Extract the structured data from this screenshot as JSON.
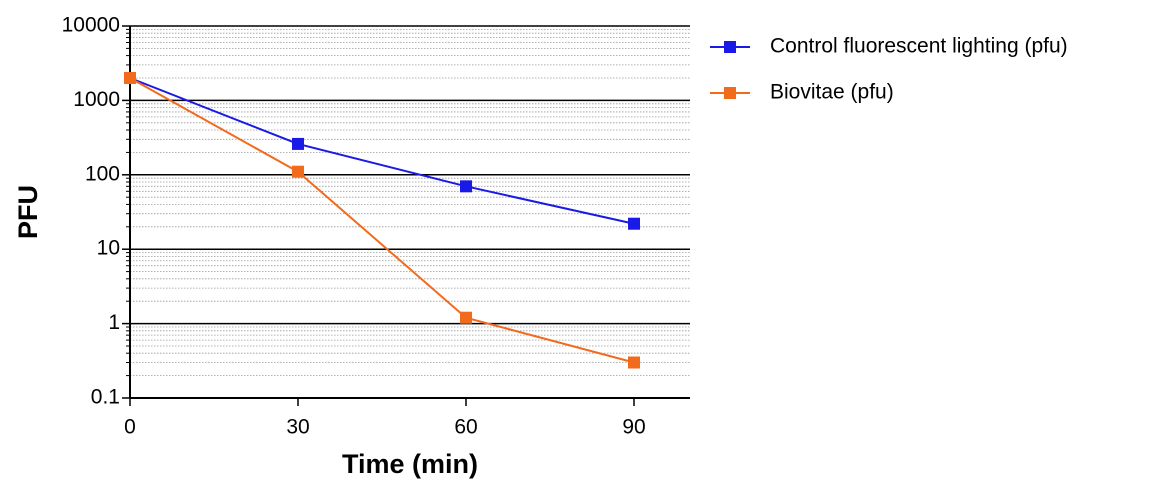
{
  "chart_data": {
    "type": "line",
    "x_label": "Time (min)",
    "y_label": "PFU",
    "x": [
      0,
      30,
      60,
      90
    ],
    "series": [
      {
        "name": "Control fluorescent lighting (pfu)",
        "color": "#1a1ae6",
        "values": [
          2000,
          260,
          70,
          22
        ]
      },
      {
        "name": "Biovitae (pfu)",
        "color": "#f26b1d",
        "values": [
          2000,
          110,
          1.2,
          0.3
        ]
      }
    ],
    "xlim": [
      0,
      100
    ],
    "xticks": [
      0,
      30,
      60,
      90
    ],
    "ylim": [
      0.1,
      10000
    ],
    "yticks": [
      0.1,
      1,
      10,
      100,
      1000,
      10000
    ],
    "log_y": true,
    "grid": true,
    "legend": "right"
  }
}
